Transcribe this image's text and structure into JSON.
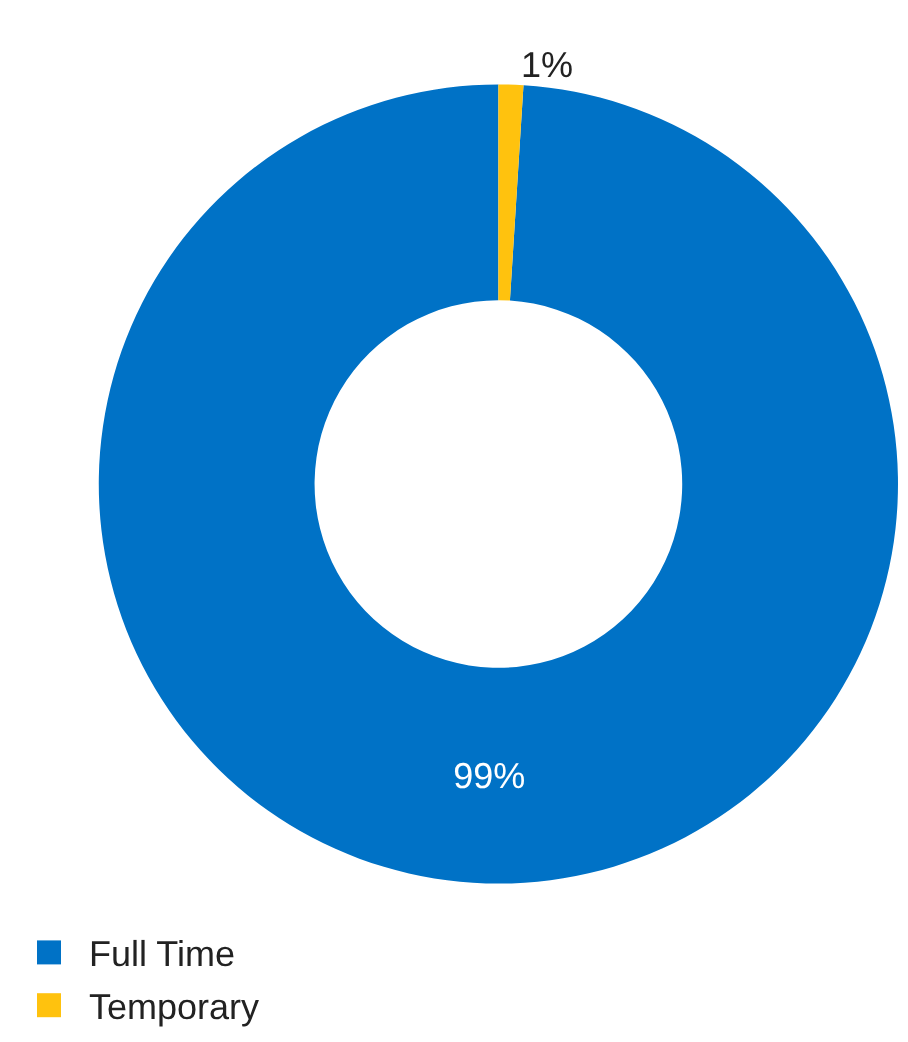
{
  "chart_data": {
    "type": "donut",
    "categories": [
      "Full Time",
      "Temporary"
    ],
    "values": [
      99,
      1
    ],
    "colors": [
      "#0072c6",
      "#ffc20e"
    ],
    "value_labels": [
      "99%",
      "1%"
    ],
    "legend": "bottom left"
  }
}
